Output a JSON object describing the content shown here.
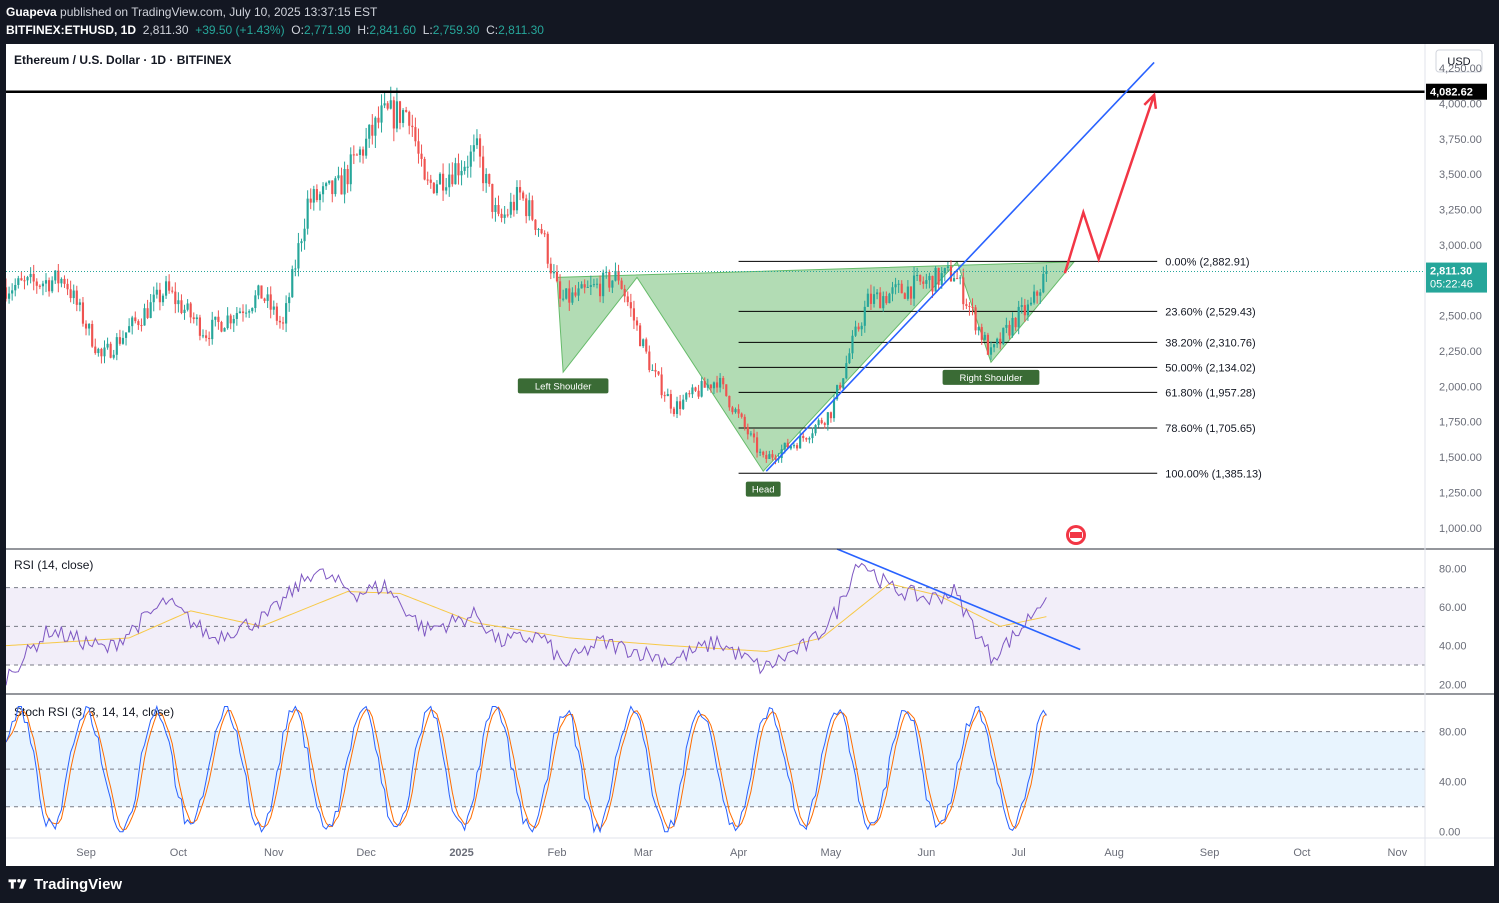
{
  "header": {
    "author": "Guapeva",
    "published_text": "published on TradingView.com, July 10, 2025 13:37:15 EST",
    "symbol": "BITFINEX:ETHUSD, 1D",
    "last": "2,811.30",
    "change": "+39.50 (+1.43%)",
    "o_label": "O:",
    "o": "2,771.90",
    "h_label": "H:",
    "h": "2,841.60",
    "l_label": "L:",
    "l": "2,759.30",
    "c_label": "C:",
    "c": "2,811.30"
  },
  "footer": {
    "brand": "TradingView"
  },
  "colors": {
    "up": "#26a69a",
    "down": "#ef5350",
    "pattern_fill": "#a5d6a7",
    "trend": "#2962ff",
    "projection": "#f23645",
    "rsi_line": "#7e57c2",
    "rsi_ma": "#f7c948",
    "stoch_k": "#2962ff",
    "stoch_d": "#ff6d00",
    "label_bg": "#3a6b35"
  },
  "chart_data": [
    {
      "type": "candlestick",
      "title": "Ethereum / U.S. Dollar · 1D · BITFINEX",
      "currency": "USD",
      "y_ticks": [
        "4,250.00",
        "4,000.00",
        "3,750.00",
        "3,500.00",
        "3,250.00",
        "3,000.00",
        "2,750.00",
        "2,500.00",
        "2,250.00",
        "2,000.00",
        "1,750.00",
        "1,500.00",
        "1,250.00",
        "1,000.00"
      ],
      "ylim": [
        850,
        4420
      ],
      "x_labels": [
        "Sep",
        "Oct",
        "Nov",
        "Dec",
        "2025",
        "Feb",
        "Mar",
        "Apr",
        "May",
        "Jun",
        "Jul",
        "Aug",
        "Sep",
        "Oct",
        "Nov"
      ],
      "x_dates": [
        "2024-09-01",
        "2024-10-01",
        "2024-11-01",
        "2024-12-01",
        "2025-01-01",
        "2025-02-01",
        "2025-03-01",
        "2025-04-01",
        "2025-05-01",
        "2025-06-01",
        "2025-07-01",
        "2025-08-01",
        "2025-09-01",
        "2025-10-01",
        "2025-11-01"
      ],
      "x_range": [
        "2024-08-06",
        "2025-11-10"
      ],
      "price_anchors": [
        {
          "date": "2024-08-06",
          "price": 2700
        },
        {
          "date": "2024-08-25",
          "price": 2760
        },
        {
          "date": "2024-09-06",
          "price": 2200
        },
        {
          "date": "2024-09-27",
          "price": 2680
        },
        {
          "date": "2024-10-10",
          "price": 2380
        },
        {
          "date": "2024-10-28",
          "price": 2650
        },
        {
          "date": "2024-11-04",
          "price": 2420
        },
        {
          "date": "2024-11-12",
          "price": 3300
        },
        {
          "date": "2024-11-22",
          "price": 3400
        },
        {
          "date": "2024-12-06",
          "price": 3900
        },
        {
          "date": "2024-12-15",
          "price": 3950
        },
        {
          "date": "2024-12-20",
          "price": 3400
        },
        {
          "date": "2025-01-06",
          "price": 3650
        },
        {
          "date": "2025-01-13",
          "price": 3150
        },
        {
          "date": "2025-01-20",
          "price": 3350
        },
        {
          "date": "2025-01-27",
          "price": 3100
        },
        {
          "date": "2025-02-02",
          "price": 2600
        },
        {
          "date": "2025-02-09",
          "price": 2650
        },
        {
          "date": "2025-02-21",
          "price": 2780
        },
        {
          "date": "2025-03-04",
          "price": 2100
        },
        {
          "date": "2025-03-11",
          "price": 1850
        },
        {
          "date": "2025-03-25",
          "price": 2050
        },
        {
          "date": "2025-04-09",
          "price": 1480
        },
        {
          "date": "2025-04-21",
          "price": 1620
        },
        {
          "date": "2025-05-01",
          "price": 1820
        },
        {
          "date": "2025-05-08",
          "price": 2300
        },
        {
          "date": "2025-05-13",
          "price": 2600
        },
        {
          "date": "2025-06-10",
          "price": 2800
        },
        {
          "date": "2025-06-22",
          "price": 2220
        },
        {
          "date": "2025-06-30",
          "price": 2480
        },
        {
          "date": "2025-07-05",
          "price": 2560
        },
        {
          "date": "2025-07-10",
          "price": 2811.3
        }
      ],
      "ath_line": {
        "price": 4082.62,
        "label": "4,082.62"
      },
      "current_price": {
        "price": 2811.3,
        "label": "2,811.30",
        "countdown": "05:22:46"
      },
      "fibonacci": {
        "start_date": "2025-04-01",
        "end_date": "2025-08-15",
        "levels": [
          {
            "price": 2882.91,
            "label": "0.00% (2,882.91)"
          },
          {
            "price": 2529.43,
            "label": "23.60% (2,529.43)"
          },
          {
            "price": 2310.76,
            "label": "38.20% (2,310.76)"
          },
          {
            "price": 2134.02,
            "label": "50.00% (2,134.02)"
          },
          {
            "price": 1957.28,
            "label": "61.80% (1,957.28)"
          },
          {
            "price": 1705.65,
            "label": "78.60% (1,705.65)"
          },
          {
            "price": 1385.13,
            "label": "100.00% (1,385.13)"
          }
        ]
      },
      "pattern": {
        "points": [
          {
            "date": "2025-02-01",
            "price": 2770
          },
          {
            "date": "2025-02-03",
            "price": 2100
          },
          {
            "date": "2025-02-27",
            "price": 2770
          },
          {
            "date": "2025-04-09",
            "price": 1400
          },
          {
            "date": "2025-06-11",
            "price": 2880
          },
          {
            "date": "2025-06-22",
            "price": 2170
          },
          {
            "date": "2025-07-19",
            "price": 2880
          }
        ],
        "labels": [
          {
            "text": "Left Shoulder",
            "date": "2025-02-03",
            "price": 2000
          },
          {
            "text": "Head",
            "date": "2025-04-09",
            "price": 1270
          },
          {
            "text": "Right Shoulder",
            "date": "2025-06-22",
            "price": 2060
          }
        ]
      },
      "trendline": {
        "from": {
          "date": "2025-04-10",
          "price": 1400
        },
        "to": {
          "date": "2025-08-14",
          "price": 4290
        }
      },
      "projection": [
        {
          "date": "2025-07-16",
          "price": 2800
        },
        {
          "date": "2025-07-22",
          "price": 3230
        },
        {
          "date": "2025-07-27",
          "price": 2900
        },
        {
          "date": "2025-08-14",
          "price": 4060
        }
      ]
    },
    {
      "type": "line",
      "title": "RSI (14, close)",
      "y_ticks": [
        "80.00",
        "60.00",
        "40.00",
        "20.00"
      ],
      "ylim": [
        15,
        90
      ],
      "band": [
        30,
        70
      ],
      "midline": 50,
      "series": [
        {
          "values_anchors": [
            {
              "date": "2024-08-06",
              "v": 24
            },
            {
              "date": "2024-08-20",
              "v": 48
            },
            {
              "date": "2024-09-08",
              "v": 38
            },
            {
              "date": "2024-09-27",
              "v": 63
            },
            {
              "date": "2024-10-12",
              "v": 44
            },
            {
              "date": "2024-10-30",
              "v": 55
            },
            {
              "date": "2024-11-14",
              "v": 79
            },
            {
              "date": "2024-11-28",
              "v": 67
            },
            {
              "date": "2024-12-07",
              "v": 71
            },
            {
              "date": "2024-12-20",
              "v": 48
            },
            {
              "date": "2025-01-06",
              "v": 56
            },
            {
              "date": "2025-01-13",
              "v": 42
            },
            {
              "date": "2025-01-27",
              "v": 45
            },
            {
              "date": "2025-02-03",
              "v": 30
            },
            {
              "date": "2025-02-15",
              "v": 42
            },
            {
              "date": "2025-03-04",
              "v": 35
            },
            {
              "date": "2025-03-10",
              "v": 32
            },
            {
              "date": "2025-03-25",
              "v": 42
            },
            {
              "date": "2025-04-09",
              "v": 28
            },
            {
              "date": "2025-04-25",
              "v": 42
            },
            {
              "date": "2025-05-03",
              "v": 58
            },
            {
              "date": "2025-05-10",
              "v": 85
            },
            {
              "date": "2025-05-20",
              "v": 70
            },
            {
              "date": "2025-06-02",
              "v": 64
            },
            {
              "date": "2025-06-10",
              "v": 68
            },
            {
              "date": "2025-06-22",
              "v": 34
            },
            {
              "date": "2025-07-01",
              "v": 47
            },
            {
              "date": "2025-07-10",
              "v": 67
            }
          ]
        },
        {
          "values_anchors": [
            {
              "date": "2024-08-06",
              "v": 40
            },
            {
              "date": "2024-09-15",
              "v": 44
            },
            {
              "date": "2024-10-05",
              "v": 58
            },
            {
              "date": "2024-10-28",
              "v": 50
            },
            {
              "date": "2024-11-25",
              "v": 68
            },
            {
              "date": "2024-12-12",
              "v": 67
            },
            {
              "date": "2025-01-05",
              "v": 52
            },
            {
              "date": "2025-02-05",
              "v": 44
            },
            {
              "date": "2025-03-10",
              "v": 40
            },
            {
              "date": "2025-04-10",
              "v": 37
            },
            {
              "date": "2025-04-28",
              "v": 44
            },
            {
              "date": "2025-05-20",
              "v": 72
            },
            {
              "date": "2025-06-05",
              "v": 66
            },
            {
              "date": "2025-06-25",
              "v": 50
            },
            {
              "date": "2025-07-10",
              "v": 55
            }
          ]
        }
      ],
      "trendline": {
        "from": {
          "date": "2025-05-03",
          "v": 90
        },
        "to": {
          "date": "2025-07-21",
          "v": 38
        }
      }
    },
    {
      "type": "line",
      "title": "Stoch RSI (3, 3, 14, 14, close)",
      "y_ticks": [
        "80.00",
        "40.00",
        "0.00"
      ],
      "ylim": [
        -5,
        110
      ],
      "band": [
        20,
        80
      ],
      "midline": 50
    }
  ]
}
